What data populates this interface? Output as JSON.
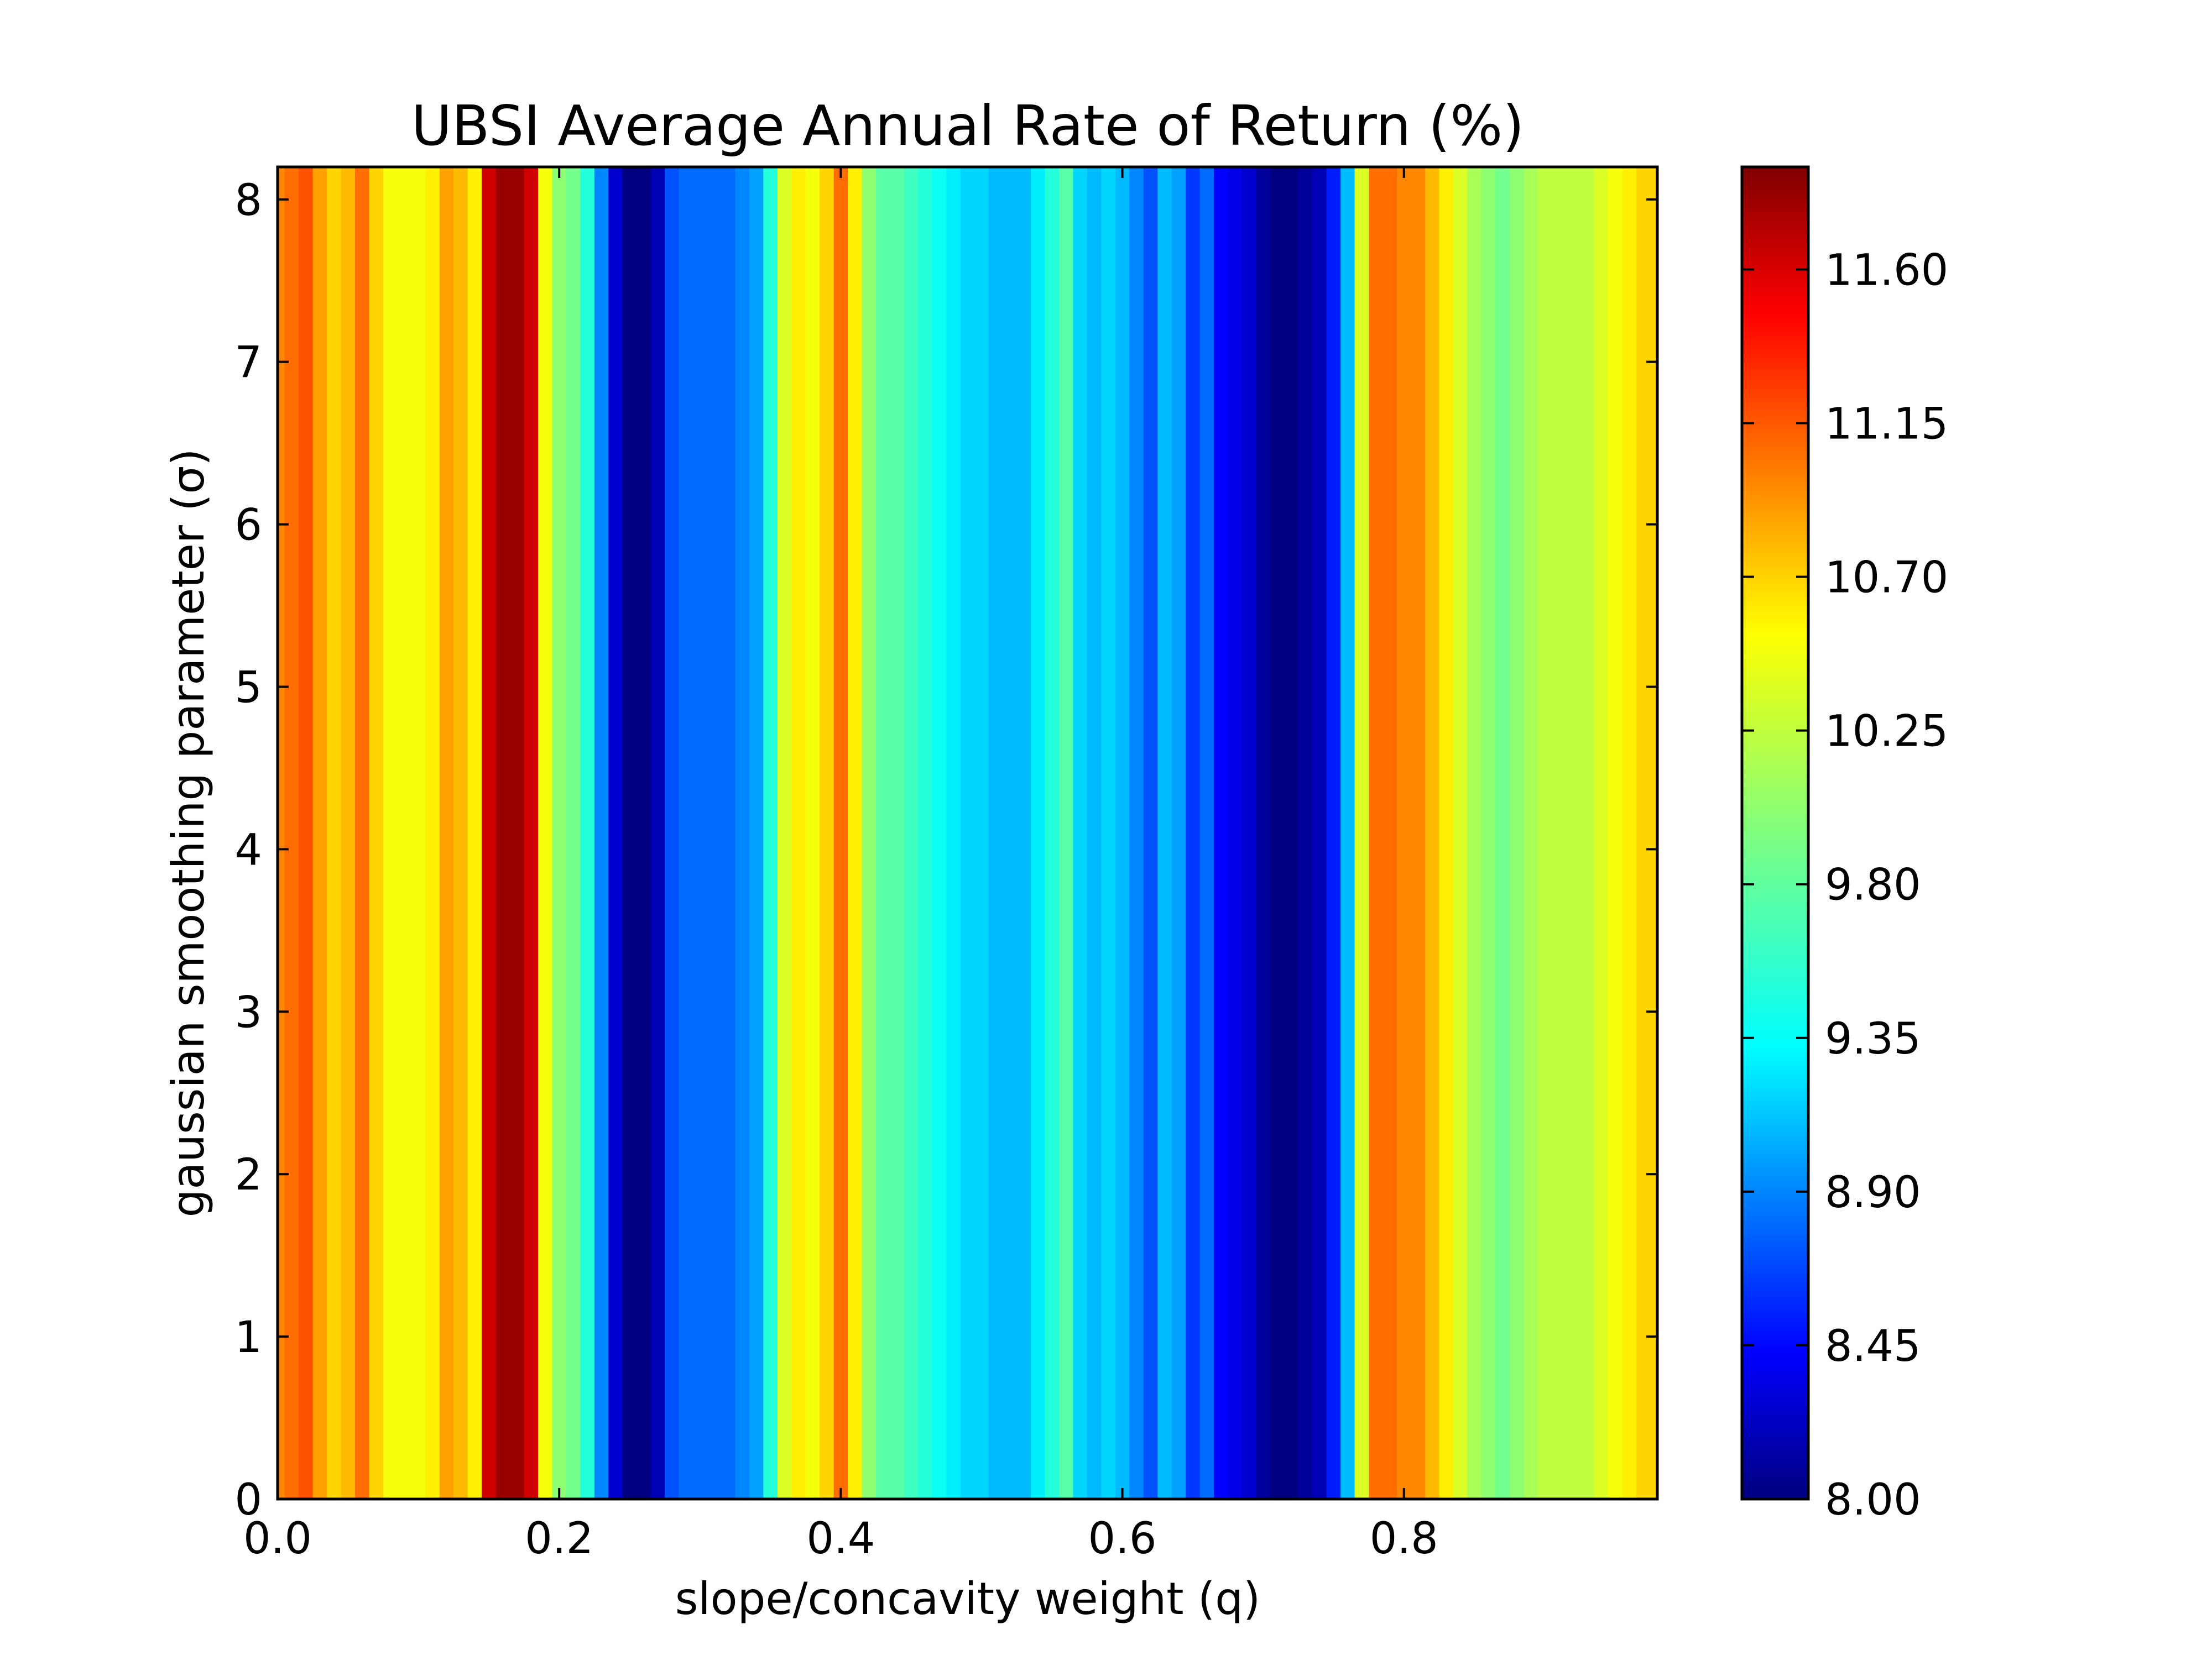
{
  "chart_data": {
    "type": "heatmap",
    "title": "UBSI Average Annual Rate of Return (%)",
    "xlabel": "slope/concavity weight (q)",
    "ylabel": "gaussian smoothing parameter (σ)",
    "xlim": [
      0.0,
      0.98
    ],
    "ylim": [
      0,
      8.2
    ],
    "x_ticks": [
      "0.0",
      "0.2",
      "0.4",
      "0.6",
      "0.8"
    ],
    "x_tick_values": [
      0.0,
      0.2,
      0.4,
      0.6,
      0.8
    ],
    "y_ticks": [
      "0",
      "1",
      "2",
      "3",
      "4",
      "5",
      "6",
      "7",
      "8"
    ],
    "y_tick_values": [
      0,
      1,
      2,
      3,
      4,
      5,
      6,
      7,
      8
    ],
    "colormap": "jet",
    "grid": false,
    "colorbar": {
      "min": 8.0,
      "max": 11.9,
      "tick_labels": [
        "8.00",
        "8.45",
        "8.90",
        "9.35",
        "9.80",
        "10.25",
        "10.70",
        "11.15",
        "11.60"
      ],
      "tick_values": [
        8.0,
        8.45,
        8.9,
        9.35,
        9.8,
        10.25,
        10.7,
        11.15,
        11.6
      ]
    },
    "note_values": "Each q column has a constant value for all sigma (vertical stripes).",
    "q": [
      0.0,
      0.01,
      0.02,
      0.03,
      0.04,
      0.05,
      0.06,
      0.07,
      0.08,
      0.09,
      0.1,
      0.11,
      0.12,
      0.13,
      0.14,
      0.15,
      0.16,
      0.17,
      0.18,
      0.19,
      0.2,
      0.21,
      0.22,
      0.23,
      0.24,
      0.25,
      0.26,
      0.27,
      0.28,
      0.29,
      0.3,
      0.31,
      0.32,
      0.33,
      0.34,
      0.35,
      0.36,
      0.37,
      0.38,
      0.39,
      0.4,
      0.41,
      0.42,
      0.43,
      0.44,
      0.45,
      0.46,
      0.47,
      0.48,
      0.49,
      0.5,
      0.51,
      0.52,
      0.53,
      0.54,
      0.55,
      0.56,
      0.57,
      0.58,
      0.59,
      0.6,
      0.61,
      0.62,
      0.63,
      0.64,
      0.65,
      0.66,
      0.67,
      0.68,
      0.69,
      0.7,
      0.71,
      0.72,
      0.73,
      0.74,
      0.75,
      0.76,
      0.77,
      0.78,
      0.79,
      0.8,
      0.81,
      0.82,
      0.83,
      0.84,
      0.85,
      0.86,
      0.87,
      0.88,
      0.89,
      0.9,
      0.91,
      0.92,
      0.93,
      0.94,
      0.95,
      0.96,
      0.97,
      0.98
    ],
    "values": [
      10.9,
      11.0,
      11.1,
      10.8,
      10.6,
      10.7,
      11.0,
      10.6,
      10.4,
      10.4,
      10.4,
      10.5,
      10.8,
      10.7,
      10.5,
      11.6,
      11.8,
      11.8,
      11.6,
      10.4,
      10.0,
      9.9,
      9.6,
      9.0,
      8.3,
      8.0,
      8.0,
      8.2,
      8.8,
      8.9,
      8.9,
      8.9,
      8.9,
      9.0,
      9.1,
      9.6,
      10.3,
      10.5,
      10.4,
      10.6,
      11.0,
      10.5,
      10.0,
      9.8,
      9.8,
      9.7,
      9.6,
      9.5,
      9.4,
      9.3,
      9.3,
      9.2,
      9.2,
      9.2,
      9.4,
      9.6,
      9.8,
      9.3,
      9.2,
      9.3,
      9.2,
      9.0,
      8.8,
      9.2,
      9.1,
      8.7,
      8.9,
      8.5,
      8.4,
      8.3,
      8.1,
      8.0,
      8.0,
      8.1,
      8.2,
      8.6,
      9.2,
      10.3,
      11.0,
      11.0,
      10.9,
      10.9,
      10.7,
      10.5,
      10.3,
      10.1,
      10.0,
      9.9,
      10.0,
      10.1,
      10.2,
      10.2,
      10.2,
      10.2,
      10.3,
      10.4,
      10.5,
      10.6,
      10.6
    ]
  }
}
